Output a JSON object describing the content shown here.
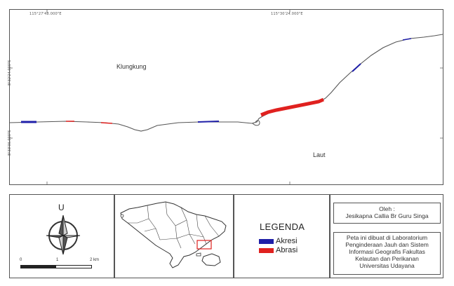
{
  "map": {
    "coord_top_left": "115°27'48.000\"E",
    "coord_top_right": "115°30'24.000\"E",
    "coord_left_upper": "8°32'24.000\"S",
    "coord_left_lower": "8°33'36.000\"S",
    "label_land": "Klungkung",
    "label_sea": "Laut"
  },
  "north_arrow": {
    "label": "U"
  },
  "scale_bar": {
    "labels": [
      "0",
      "1",
      "2 km"
    ]
  },
  "legend": {
    "title": "LEGENDA",
    "items": [
      {
        "label": "Akresi",
        "color": "#1f1fa8"
      },
      {
        "label": "Abrasi",
        "color": "#e0211f"
      }
    ]
  },
  "author": {
    "heading": "Oleh :",
    "name": "Jesikapna Callia Br Guru Singa"
  },
  "credit": {
    "lines": [
      "Peta ini dibuat di Laboratorium",
      "Penginderaan Jauh dan Sistem",
      "Informasi Geografis Fakultas",
      "Kelautan dan Perikanan",
      "Universitas Udayana"
    ]
  },
  "colors": {
    "frame": "#555555",
    "coastline": "#555555",
    "locator_box": "#e0211f"
  }
}
